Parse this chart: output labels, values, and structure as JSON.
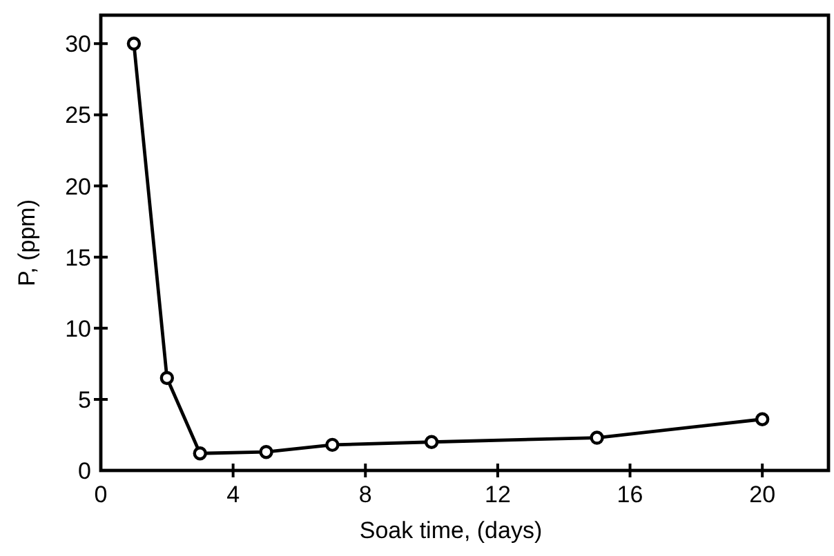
{
  "chart_data": {
    "type": "line",
    "xlabel": "Soak time, (days)",
    "ylabel": "P, (ppm)",
    "x": [
      1,
      2,
      3,
      5,
      7,
      10,
      15,
      20
    ],
    "series": [
      {
        "color": "#000000",
        "values": [
          30,
          6.5,
          1.2,
          1.3,
          1.8,
          2.0,
          2.3,
          3.6
        ]
      }
    ],
    "xlim": [
      0,
      22
    ],
    "xticks": [
      0,
      4,
      8,
      12,
      16,
      20
    ],
    "ylim": [
      0,
      32
    ],
    "yticks": [
      0,
      5,
      10,
      15,
      20,
      25,
      30
    ],
    "marker": "circle",
    "line_style": "solid"
  }
}
